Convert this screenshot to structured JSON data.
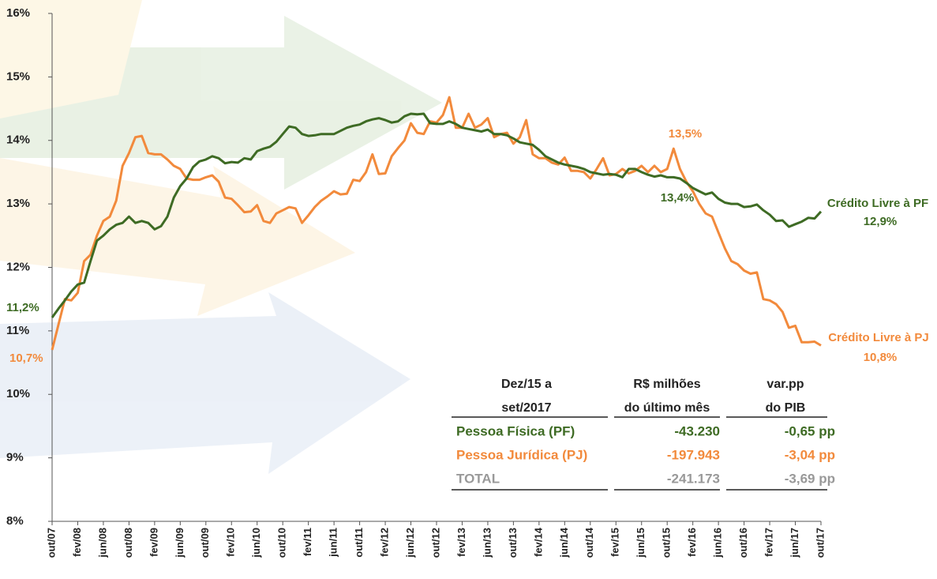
{
  "chart_data": {
    "type": "line",
    "categories": [
      "out/07",
      null,
      null,
      null,
      "fev/08",
      null,
      null,
      null,
      "jun/08",
      null,
      null,
      null,
      "out/08",
      null,
      null,
      null,
      "fev/09",
      null,
      null,
      null,
      "jun/09",
      null,
      null,
      null,
      "out/09",
      null,
      null,
      null,
      "fev/10",
      null,
      null,
      null,
      "jun/10",
      null,
      null,
      null,
      "out/10",
      null,
      null,
      null,
      "fev/11",
      null,
      null,
      null,
      "jun/11",
      null,
      null,
      null,
      "out/11",
      null,
      null,
      null,
      "fev/12",
      null,
      null,
      null,
      "jun/12",
      null,
      null,
      null,
      "out/12",
      null,
      null,
      null,
      "fev/13",
      null,
      null,
      null,
      "jun/13",
      null,
      null,
      null,
      "out/13",
      null,
      null,
      null,
      "fev/14",
      null,
      null,
      null,
      "jun/14",
      null,
      null,
      null,
      "out/14",
      null,
      null,
      null,
      "fev/15",
      null,
      null,
      null,
      "jun/15",
      null,
      null,
      null,
      "out/15",
      null,
      null,
      null,
      "fev/16",
      null,
      null,
      null,
      "jun/16",
      null,
      null,
      null,
      "out/16",
      null,
      null,
      null,
      "fev/17",
      null,
      null,
      null,
      "jun/17",
      null,
      null,
      null,
      "out/17"
    ],
    "series": [
      {
        "name": "Crédito Livre à PF",
        "color": "#3e6b24",
        "values": [
          11.21,
          11.35,
          11.48,
          11.62,
          11.73,
          11.76,
          12.1,
          12.42,
          12.5,
          12.6,
          12.67,
          12.7,
          12.8,
          12.7,
          12.73,
          12.7,
          12.6,
          12.65,
          12.8,
          13.1,
          13.28,
          13.4,
          13.58,
          13.67,
          13.7,
          13.75,
          13.72,
          13.64,
          13.66,
          13.65,
          13.72,
          13.7,
          13.83,
          13.87,
          13.9,
          13.98,
          14.1,
          14.22,
          14.2,
          14.1,
          14.07,
          14.08,
          14.1,
          14.1,
          14.1,
          14.15,
          14.2,
          14.23,
          14.25,
          14.3,
          14.33,
          14.35,
          14.32,
          14.28,
          14.3,
          14.38,
          14.42,
          14.41,
          14.42,
          14.27,
          14.26,
          14.26,
          14.3,
          14.26,
          14.2,
          14.18,
          14.16,
          14.14,
          14.17,
          14.1,
          14.1,
          14.08,
          14.03,
          13.97,
          13.95,
          13.93,
          13.85,
          13.75,
          13.7,
          13.65,
          13.62,
          13.6,
          13.58,
          13.55,
          13.5,
          13.48,
          13.46,
          13.47,
          13.46,
          13.42,
          13.55,
          13.55,
          13.5,
          13.46,
          13.43,
          13.45,
          13.42,
          13.42,
          13.4,
          13.33,
          13.25,
          13.2,
          13.15,
          13.18,
          13.08,
          13.02,
          13.0,
          13.0,
          12.95,
          12.96,
          12.99,
          12.9,
          12.83,
          12.73,
          12.74,
          12.64,
          12.68,
          12.72,
          12.78,
          12.77,
          12.88
        ]
      },
      {
        "name": "Crédito Livre à PJ",
        "color": "#f28a3c",
        "values": [
          10.7,
          11.1,
          11.5,
          11.48,
          11.6,
          12.1,
          12.2,
          12.5,
          12.73,
          12.8,
          13.05,
          13.6,
          13.8,
          14.05,
          14.07,
          13.8,
          13.78,
          13.78,
          13.7,
          13.6,
          13.55,
          13.4,
          13.38,
          13.38,
          13.42,
          13.45,
          13.35,
          13.1,
          13.08,
          12.98,
          12.87,
          12.88,
          12.98,
          12.73,
          12.7,
          12.85,
          12.9,
          12.95,
          12.93,
          12.7,
          12.82,
          12.95,
          13.05,
          13.12,
          13.2,
          13.15,
          13.16,
          13.38,
          13.36,
          13.5,
          13.78,
          13.47,
          13.48,
          13.75,
          13.88,
          14.0,
          14.27,
          14.12,
          14.1,
          14.3,
          14.28,
          14.4,
          14.68,
          14.2,
          14.2,
          14.42,
          14.2,
          14.25,
          14.35,
          14.05,
          14.1,
          14.12,
          13.95,
          14.05,
          14.32,
          13.78,
          13.72,
          13.72,
          13.65,
          13.62,
          13.73,
          13.52,
          13.52,
          13.5,
          13.4,
          13.55,
          13.72,
          13.45,
          13.47,
          13.55,
          13.48,
          13.52,
          13.6,
          13.5,
          13.6,
          13.5,
          13.55,
          13.87,
          13.55,
          13.35,
          13.2,
          13.0,
          12.85,
          12.8,
          12.55,
          12.3,
          12.1,
          12.05,
          11.95,
          11.9,
          11.92,
          11.5,
          11.48,
          11.42,
          11.3,
          11.05,
          11.08,
          10.82,
          10.82,
          10.83,
          10.77
        ]
      }
    ],
    "ylim": [
      8,
      16
    ],
    "yticks": [
      {
        "value": 8,
        "label": "8%"
      },
      {
        "value": 9,
        "label": "9%"
      },
      {
        "value": 10,
        "label": "10%"
      },
      {
        "value": 11,
        "label": "11%"
      },
      {
        "value": 12,
        "label": "12%"
      },
      {
        "value": 13,
        "label": "13%"
      },
      {
        "value": 14,
        "label": "14%"
      },
      {
        "value": 15,
        "label": "15%"
      },
      {
        "value": 16,
        "label": "16%"
      }
    ],
    "annotations": [
      {
        "text": "11,2%",
        "color": "#3e6b24"
      },
      {
        "text": "10,7%",
        "color": "#f28a3c"
      },
      {
        "text": "13,5%",
        "color": "#f28a3c"
      },
      {
        "text": "13,4%",
        "color": "#3e6b24"
      },
      {
        "text": "Crédito Livre à PF",
        "color": "#3e6b24"
      },
      {
        "text": "12,9%",
        "color": "#3e6b24"
      },
      {
        "text": "Crédito Livre à PJ",
        "color": "#f28a3c"
      },
      {
        "text": "10,8%",
        "color": "#f28a3c"
      }
    ],
    "table": {
      "header": [
        [
          "Dez/15 a",
          "set/2017"
        ],
        [
          "R$ milhões",
          "do último mês"
        ],
        [
          "var.pp",
          "do PIB"
        ]
      ],
      "rows": [
        {
          "cells": [
            "Pessoa Física (PF)",
            "-43.230",
            "-0,65 pp"
          ],
          "color": "#3e6b24"
        },
        {
          "cells": [
            "Pessoa Jurídica (PJ)",
            "-197.943",
            "-3,04 pp"
          ],
          "color": "#f28a3c"
        },
        {
          "cells": [
            "TOTAL",
            "-241.173",
            "-3,69 pp"
          ],
          "color": "#999999"
        }
      ]
    }
  }
}
